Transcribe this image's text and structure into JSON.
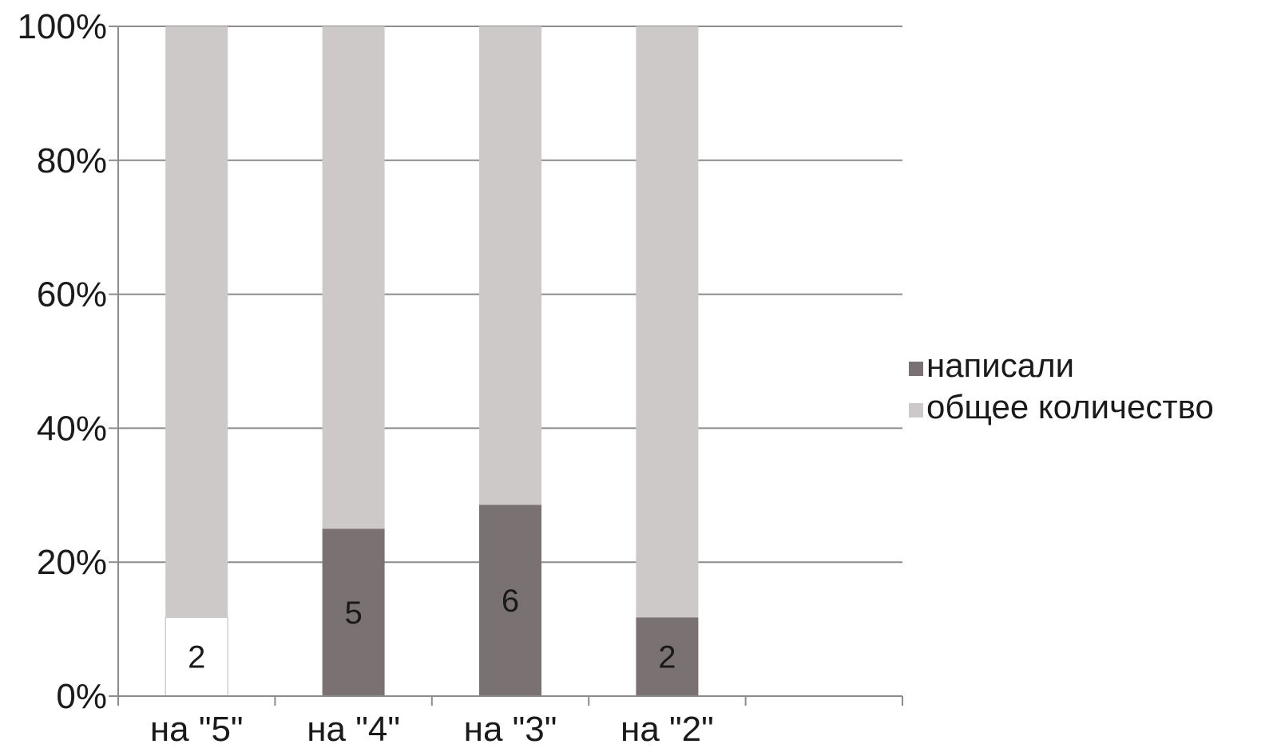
{
  "chart_data": {
    "type": "bar",
    "stacked": "percent",
    "categories": [
      "на \"5\"",
      "на \"4\"",
      "на \"3\"",
      "на \"2\""
    ],
    "series": [
      {
        "name": "написали",
        "values": [
          2,
          5,
          6,
          2
        ],
        "labels": [
          "2",
          "5",
          "6",
          "2"
        ],
        "color": "#7a7172"
      },
      {
        "name": "общее количество",
        "values": [
          15,
          15,
          15,
          15
        ],
        "color": "#cdc9c9"
      }
    ],
    "first_category_fill": "#ffffff",
    "yticks": [
      "0%",
      "20%",
      "40%",
      "60%",
      "80%",
      "100%"
    ],
    "ylim": [
      0,
      100
    ],
    "grid": true,
    "legend_position": "right",
    "title": "",
    "xlabel": "",
    "ylabel": ""
  }
}
